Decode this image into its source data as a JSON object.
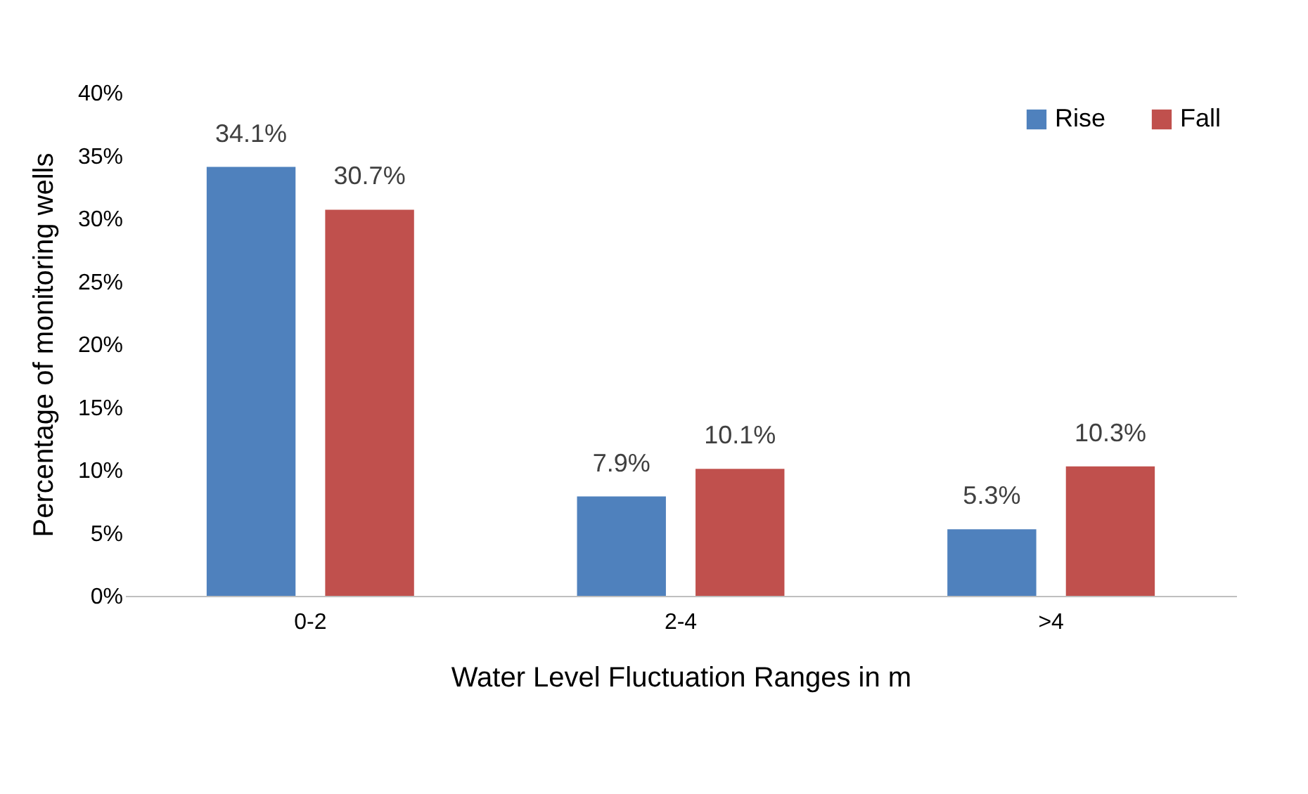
{
  "chart_data": {
    "type": "bar",
    "xlabel": "Water Level Fluctuation Ranges in m",
    "ylabel": "Percentage of monitoring wells",
    "categories": [
      "0-2",
      "2-4",
      ">4"
    ],
    "series": [
      {
        "name": "Rise",
        "color": "#4f81bd",
        "values": [
          34.1,
          7.9,
          5.3
        ],
        "value_labels": [
          "34.1%",
          "7.9%",
          "5.3%"
        ]
      },
      {
        "name": "Fall",
        "color": "#c0504d",
        "values": [
          30.7,
          10.1,
          10.3
        ],
        "value_labels": [
          "30.7%",
          "10.1%",
          "10.3%"
        ]
      }
    ],
    "ylim": [
      0,
      40
    ],
    "yticks": [
      {
        "value": 0,
        "label": "0%"
      },
      {
        "value": 5,
        "label": "5%"
      },
      {
        "value": 10,
        "label": "10%"
      },
      {
        "value": 15,
        "label": "15%"
      },
      {
        "value": 20,
        "label": "20%"
      },
      {
        "value": 25,
        "label": "25%"
      },
      {
        "value": 30,
        "label": "30%"
      },
      {
        "value": 35,
        "label": "35%"
      },
      {
        "value": 40,
        "label": "40%"
      }
    ],
    "grid": false,
    "legend": "top right"
  }
}
